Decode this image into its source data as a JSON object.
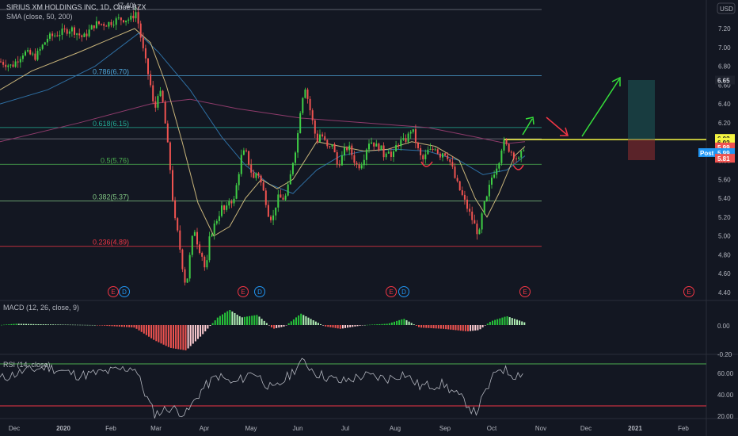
{
  "header": {
    "symbol": "SIRIUS XM HOLDINGS INC, 1D, Cboe BZX",
    "high_marker": "(7.40)",
    "sma": "SMA (close, 50, 200)",
    "currency": "USD"
  },
  "price_axis": {
    "ticks": [
      "7.20",
      "7.00",
      "6.80",
      "6.60",
      "6.40",
      "6.20",
      "6.00",
      "5.80",
      "5.60",
      "5.40",
      "5.20",
      "5.00",
      "4.80",
      "4.60",
      "4.40"
    ],
    "tags": [
      {
        "text": "6.65",
        "bg": "#1e222d",
        "fg": "#d1d4dc",
        "value": 6.65
      },
      {
        "text": "6.03",
        "bg": "#f5f542",
        "fg": "#131722",
        "value": 6.03
      },
      {
        "text": "6.02",
        "bg": "#f5f542",
        "fg": "#131722",
        "value": 5.99
      },
      {
        "text": "5.99",
        "bg": "#ef5350",
        "fg": "#ffffff",
        "value": 5.94
      },
      {
        "text": "5.99",
        "bg": "#2196f3",
        "fg": "#ffffff",
        "value": 5.88
      },
      {
        "text": "5.81",
        "bg": "#ef5350",
        "fg": "#ffffff",
        "value": 5.82
      }
    ],
    "post_label": "Post"
  },
  "fib": [
    {
      "label": "0.786(6.70)",
      "value": 6.7,
      "color": "#4ea5d9"
    },
    {
      "label": "0.618(6.15)",
      "value": 6.15,
      "color": "#22ab94"
    },
    {
      "label": "0.5(5.76)",
      "value": 5.76,
      "color": "#4caf50"
    },
    {
      "label": "0.382(5.37)",
      "value": 5.37,
      "color": "#81c784"
    },
    {
      "label": "0.236(4.89)",
      "value": 4.89,
      "color": "#f23645"
    }
  ],
  "events": [
    {
      "t": "E",
      "color": "#f23645",
      "x": 143
    },
    {
      "t": "D",
      "color": "#2196f3",
      "x": 157
    },
    {
      "t": "E",
      "color": "#f23645",
      "x": 307
    },
    {
      "t": "D",
      "color": "#2196f3",
      "x": 328
    },
    {
      "t": "E",
      "color": "#f23645",
      "x": 494
    },
    {
      "t": "D",
      "color": "#2196f3",
      "x": 510
    },
    {
      "t": "E",
      "color": "#f23645",
      "x": 663
    },
    {
      "t": "E",
      "color": "#f23645",
      "x": 870
    }
  ],
  "macd": {
    "label": "MACD (12, 26, close, 9)",
    "ticks": [
      "0.00",
      "-0.20"
    ]
  },
  "rsi": {
    "label": "RSI (14, close)",
    "ticks": [
      "60.00",
      "40.00",
      "20.00"
    ]
  },
  "time_axis": [
    "Dec",
    "2020",
    "Feb",
    "Mar",
    "Apr",
    "May",
    "Jun",
    "Jul",
    "Aug",
    "Sep",
    "Oct",
    "Nov",
    "Dec",
    "2021",
    "Feb"
  ],
  "chart_data": {
    "type": "candlestick",
    "title": "SIRIUS XM HOLDINGS INC, 1D, Cboe BZX",
    "ylim": [
      4.35,
      7.45
    ],
    "anchors": [
      [
        0,
        6.85
      ],
      [
        15,
        6.8
      ],
      [
        30,
        6.95
      ],
      [
        45,
        6.9
      ],
      [
        60,
        7.1
      ],
      [
        75,
        7.15
      ],
      [
        90,
        7.2
      ],
      [
        105,
        7.1
      ],
      [
        120,
        7.25
      ],
      [
        135,
        7.25
      ],
      [
        150,
        7.3
      ],
      [
        165,
        7.3
      ],
      [
        172,
        7.38
      ],
      [
        180,
        7.0
      ],
      [
        185,
        6.8
      ],
      [
        190,
        6.6
      ],
      [
        195,
        6.3
      ],
      [
        200,
        6.55
      ],
      [
        205,
        6.45
      ],
      [
        210,
        6.1
      ],
      [
        215,
        5.7
      ],
      [
        220,
        5.2
      ],
      [
        225,
        5.0
      ],
      [
        230,
        4.7
      ],
      [
        235,
        4.45
      ],
      [
        240,
        4.8
      ],
      [
        245,
        5.1
      ],
      [
        250,
        4.9
      ],
      [
        255,
        4.8
      ],
      [
        260,
        4.6
      ],
      [
        265,
        5.0
      ],
      [
        270,
        5.1
      ],
      [
        275,
        5.2
      ],
      [
        280,
        5.3
      ],
      [
        285,
        5.25
      ],
      [
        290,
        5.4
      ],
      [
        295,
        5.35
      ],
      [
        300,
        5.6
      ],
      [
        305,
        5.85
      ],
      [
        310,
        5.9
      ],
      [
        315,
        5.75
      ],
      [
        320,
        5.6
      ],
      [
        325,
        5.7
      ],
      [
        330,
        5.55
      ],
      [
        335,
        5.4
      ],
      [
        340,
        5.2
      ],
      [
        345,
        5.2
      ],
      [
        350,
        5.4
      ],
      [
        355,
        5.4
      ],
      [
        360,
        5.4
      ],
      [
        365,
        5.55
      ],
      [
        370,
        5.8
      ],
      [
        375,
        6.0
      ],
      [
        380,
        6.4
      ],
      [
        385,
        6.6
      ],
      [
        390,
        6.4
      ],
      [
        395,
        6.2
      ],
      [
        400,
        6.0
      ],
      [
        405,
        6.1
      ],
      [
        410,
        6.0
      ],
      [
        415,
        5.9
      ],
      [
        420,
        6.0
      ],
      [
        425,
        5.75
      ],
      [
        430,
        5.8
      ],
      [
        435,
        5.9
      ],
      [
        440,
        5.95
      ],
      [
        445,
        5.85
      ],
      [
        450,
        5.75
      ],
      [
        455,
        5.75
      ],
      [
        460,
        5.85
      ],
      [
        465,
        6.0
      ],
      [
        470,
        6.0
      ],
      [
        475,
        5.95
      ],
      [
        480,
        5.95
      ],
      [
        485,
        5.85
      ],
      [
        490,
        5.95
      ],
      [
        495,
        5.8
      ],
      [
        500,
        5.95
      ],
      [
        505,
        6.0
      ],
      [
        510,
        6.0
      ],
      [
        515,
        6.05
      ],
      [
        520,
        6.15
      ],
      [
        525,
        6.0
      ],
      [
        530,
        5.85
      ],
      [
        535,
        5.8
      ],
      [
        540,
        5.9
      ],
      [
        545,
        5.9
      ],
      [
        550,
        5.95
      ],
      [
        555,
        5.85
      ],
      [
        560,
        5.9
      ],
      [
        565,
        5.85
      ],
      [
        570,
        5.75
      ],
      [
        575,
        5.6
      ],
      [
        580,
        5.5
      ],
      [
        585,
        5.4
      ],
      [
        590,
        5.3
      ],
      [
        595,
        5.2
      ],
      [
        600,
        5.1
      ],
      [
        605,
        5.0
      ],
      [
        610,
        5.3
      ],
      [
        615,
        5.4
      ],
      [
        620,
        5.6
      ],
      [
        625,
        5.7
      ],
      [
        630,
        5.8
      ],
      [
        635,
        6.0
      ],
      [
        640,
        5.95
      ],
      [
        645,
        5.9
      ],
      [
        650,
        5.85
      ],
      [
        655,
        5.8
      ],
      [
        660,
        5.9
      ],
      [
        663,
        6.0
      ]
    ],
    "sma50": [
      [
        0,
        6.55
      ],
      [
        40,
        6.75
      ],
      [
        100,
        6.95
      ],
      [
        170,
        7.2
      ],
      [
        190,
        7.05
      ],
      [
        210,
        6.6
      ],
      [
        230,
        6.0
      ],
      [
        250,
        5.35
      ],
      [
        270,
        5.0
      ],
      [
        290,
        5.1
      ],
      [
        310,
        5.4
      ],
      [
        330,
        5.6
      ],
      [
        350,
        5.5
      ],
      [
        370,
        5.6
      ],
      [
        400,
        6.0
      ],
      [
        430,
        5.95
      ],
      [
        460,
        5.9
      ],
      [
        490,
        5.92
      ],
      [
        520,
        6.0
      ],
      [
        550,
        5.95
      ],
      [
        580,
        5.8
      ],
      [
        600,
        5.4
      ],
      [
        615,
        5.2
      ],
      [
        630,
        5.45
      ],
      [
        650,
        5.85
      ],
      [
        663,
        5.95
      ]
    ],
    "sma200": [
      [
        0,
        6.4
      ],
      [
        60,
        6.55
      ],
      [
        120,
        6.8
      ],
      [
        175,
        7.15
      ],
      [
        200,
        6.95
      ],
      [
        240,
        6.55
      ],
      [
        280,
        6.05
      ],
      [
        310,
        5.75
      ],
      [
        340,
        5.55
      ],
      [
        370,
        5.45
      ],
      [
        400,
        5.7
      ],
      [
        430,
        5.85
      ],
      [
        460,
        5.9
      ],
      [
        500,
        5.92
      ],
      [
        540,
        5.9
      ],
      [
        580,
        5.8
      ],
      [
        610,
        5.65
      ],
      [
        640,
        5.7
      ],
      [
        663,
        5.85
      ]
    ],
    "sma_long": [
      [
        0,
        6.0
      ],
      [
        100,
        6.2
      ],
      [
        190,
        6.4
      ],
      [
        240,
        6.45
      ],
      [
        300,
        6.35
      ],
      [
        380,
        6.25
      ],
      [
        460,
        6.2
      ],
      [
        540,
        6.15
      ],
      [
        600,
        6.05
      ],
      [
        640,
        5.98
      ],
      [
        663,
        6.0
      ]
    ]
  }
}
